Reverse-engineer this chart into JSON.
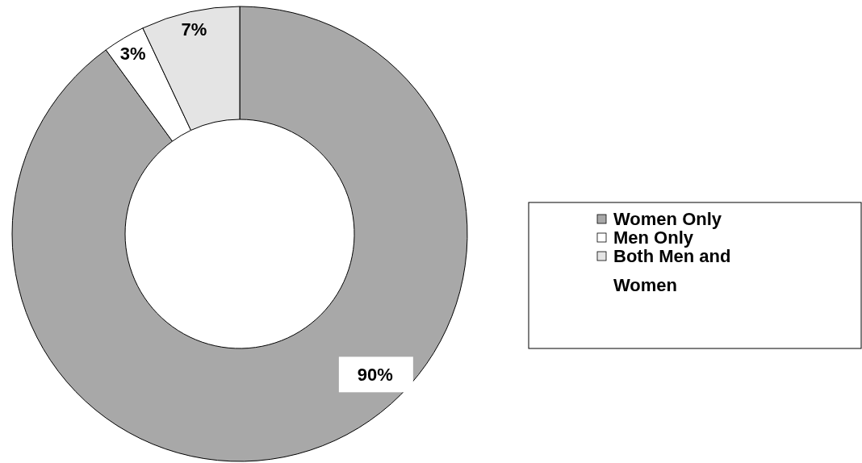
{
  "chart_data": {
    "type": "donut",
    "categories": [
      "Women Only",
      "Men Only",
      "Both Men and Women"
    ],
    "values": [
      90,
      3,
      7
    ],
    "value_labels": [
      "90%",
      "3%",
      "7%"
    ],
    "colors": [
      "#a8a8a8",
      "#ffffff",
      "#e4e4e4"
    ],
    "legend": "right"
  }
}
